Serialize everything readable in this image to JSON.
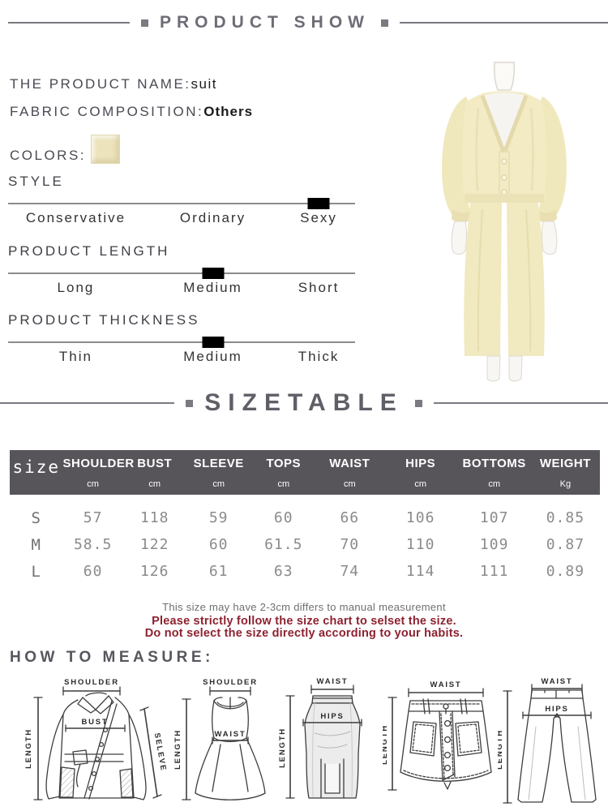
{
  "header": {
    "title": "PRODUCT SHOW"
  },
  "product": {
    "name_label": "THE PRODUCT NAME:",
    "name_value": "suit",
    "fabric_label": "FABRIC COMPOSITION:",
    "fabric_value": "Others",
    "colors_label": "COLORS:",
    "swatch_color": "#ece3bd"
  },
  "selectors": [
    {
      "label": "STYLE",
      "options": [
        "Conservative",
        "Ordinary",
        "Sexy"
      ],
      "selected_index": 2,
      "selected": "Sexy"
    },
    {
      "label": "PRODUCT LENGTH",
      "options": [
        "Long",
        "Medium",
        "Short"
      ],
      "selected_index": 1,
      "selected": "Medium"
    },
    {
      "label": "PRODUCT THICKNESS",
      "options": [
        "Thin",
        "Medium",
        "Thick"
      ],
      "selected_index": 1,
      "selected": "Medium"
    }
  ],
  "photo": {
    "subject": "cream v-neck button cardigan and wide-leg pants on mannequin",
    "garment_color": "#f2ebc3"
  },
  "sizetable_header": {
    "title": "SIZETABLE"
  },
  "size_table": {
    "size_label": "size",
    "columns": [
      {
        "name": "SHOULDER",
        "unit": "cm"
      },
      {
        "name": "BUST",
        "unit": "cm"
      },
      {
        "name": "SLEEVE",
        "unit": "cm"
      },
      {
        "name": "TOPS",
        "unit": "cm"
      },
      {
        "name": "WAIST",
        "unit": "cm"
      },
      {
        "name": "HIPS",
        "unit": "cm"
      },
      {
        "name": "BOTTOMS",
        "unit": "cm"
      },
      {
        "name": "WEIGHT",
        "unit": "Kg"
      }
    ],
    "rows": [
      {
        "size": "S",
        "values": [
          "57",
          "118",
          "59",
          "60",
          "66",
          "106",
          "107",
          "0.85"
        ]
      },
      {
        "size": "M",
        "values": [
          "58.5",
          "122",
          "60",
          "61.5",
          "70",
          "110",
          "109",
          "0.87"
        ]
      },
      {
        "size": "L",
        "values": [
          "60",
          "126",
          "61",
          "63",
          "74",
          "114",
          "111",
          "0.89"
        ]
      }
    ]
  },
  "notes": {
    "gray": "This size may have 2-3cm differs to manual measurement",
    "red_1": "Please strictly follow the size chart to selset the size.",
    "red_2": "Do not select the size directly according to your habits."
  },
  "how_to_measure": {
    "title": "HOW TO MEASURE:"
  },
  "measure_diagrams": [
    {
      "name": "jacket",
      "labels": {
        "shoulder": "SHOULDER",
        "length": "LENGTH",
        "bust": "BUST",
        "sleeve": "SELEVE"
      }
    },
    {
      "name": "dress",
      "labels": {
        "shoulder": "SHOULDER",
        "length": "LENGTH",
        "waist": "WAIST"
      }
    },
    {
      "name": "long-skirt",
      "labels": {
        "waist": "WAIST",
        "hips": "HIPS",
        "length": "LENGTH"
      }
    },
    {
      "name": "mini-skirt",
      "labels": {
        "waist": "WAIST",
        "length": "LENGTH"
      }
    },
    {
      "name": "pants",
      "labels": {
        "waist": "WAIST",
        "hips": "HIPS",
        "length": "LENGTH"
      }
    }
  ],
  "colors": {
    "accent_red": "#8d2230",
    "table_header_bg": "#57555a",
    "deco_gray": "#7b7981",
    "garment_cream": "#f2ebc3"
  }
}
